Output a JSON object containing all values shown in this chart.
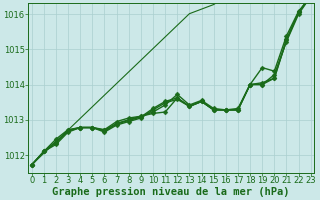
{
  "xlabel": "Graphe pression niveau de la mer (hPa)",
  "ylim": [
    1011.5,
    1016.3
  ],
  "xlim": [
    -0.3,
    23.3
  ],
  "xticks": [
    0,
    1,
    2,
    3,
    4,
    5,
    6,
    7,
    8,
    9,
    10,
    11,
    12,
    13,
    14,
    15,
    16,
    17,
    18,
    19,
    20,
    21,
    22,
    23
  ],
  "yticks": [
    1012,
    1013,
    1014,
    1015,
    1016
  ],
  "background_color": "#cce8e8",
  "grid_color": "#aacfcf",
  "line_color": "#1a6b1a",
  "thin_line": [
    1011.72,
    1012.05,
    1012.38,
    1012.71,
    1013.04,
    1013.37,
    1013.7,
    1014.03,
    1014.36,
    1014.69,
    1015.02,
    1015.35,
    1015.68,
    1016.01,
    1016.14,
    1016.27,
    1016.5
  ],
  "thin_x": [
    0,
    1,
    2,
    3,
    4,
    5,
    6,
    7,
    8,
    9,
    10,
    11,
    12,
    13,
    14,
    15,
    16
  ],
  "series": [
    [
      1011.72,
      1012.1,
      1012.45,
      1012.72,
      1012.78,
      1012.78,
      1012.72,
      1012.95,
      1013.05,
      1013.1,
      1013.18,
      1013.22,
      1013.62,
      1013.38,
      1013.52,
      1013.28,
      1013.28,
      1013.28,
      1014.0,
      1014.0,
      1014.18,
      1015.25,
      1016.05,
      1016.5
    ],
    [
      1011.72,
      1012.1,
      1012.38,
      1012.68,
      1012.78,
      1012.78,
      1012.68,
      1012.88,
      1012.98,
      1013.08,
      1013.32,
      1013.52,
      1013.62,
      1013.38,
      1013.52,
      1013.28,
      1013.28,
      1013.28,
      1014.0,
      1014.48,
      1014.38,
      1015.38,
      1016.08,
      1016.5
    ],
    [
      1011.72,
      1012.1,
      1012.3,
      1012.65,
      1012.78,
      1012.78,
      1012.65,
      1012.85,
      1012.95,
      1013.05,
      1013.28,
      1013.48,
      1013.58,
      1013.38,
      1013.52,
      1013.28,
      1013.28,
      1013.28,
      1014.0,
      1014.0,
      1014.28,
      1015.22,
      1016.0,
      1016.5
    ],
    [
      1011.72,
      1012.1,
      1012.35,
      1012.7,
      1012.78,
      1012.78,
      1012.7,
      1012.9,
      1013.0,
      1013.1,
      1013.22,
      1013.42,
      1013.72,
      1013.42,
      1013.55,
      1013.32,
      1013.28,
      1013.32,
      1014.0,
      1014.05,
      1014.18,
      1015.28,
      1016.05,
      1016.52
    ]
  ],
  "marker": "D",
  "marker_size": 2.5,
  "linewidth": 1.0,
  "thin_linewidth": 0.8,
  "font_color": "#1a6b1a",
  "xlabel_fontsize": 7.5,
  "tick_fontsize": 6.0
}
